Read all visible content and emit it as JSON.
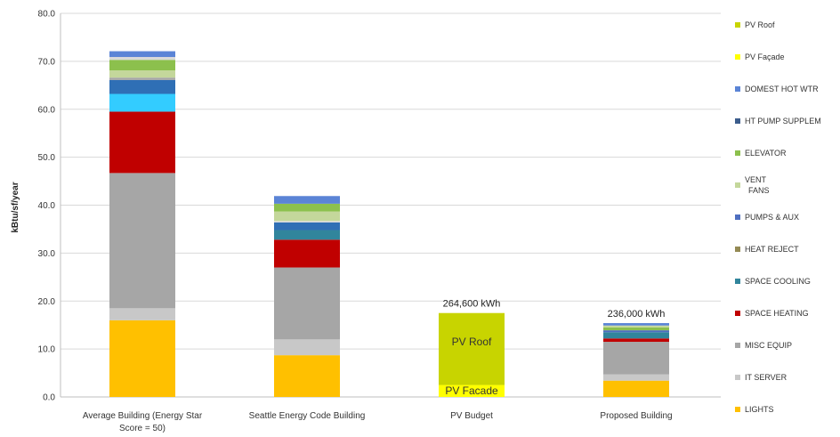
{
  "chart_data": {
    "type": "bar",
    "stacked": true,
    "ylabel": "kBtu/sf/year",
    "ylim": [
      0,
      80
    ],
    "yticks": [
      "0.0",
      "10.0",
      "20.0",
      "30.0",
      "40.0",
      "50.0",
      "60.0",
      "70.0",
      "80.0"
    ],
    "grid": true,
    "legend_position": "right",
    "categories": [
      [
        "Average Building (Energy Star",
        "Score = 50)"
      ],
      [
        "Seattle Energy Code Building"
      ],
      [
        "PV Budget"
      ],
      [
        "Proposed Building"
      ]
    ],
    "series": [
      {
        "name": "LIGHTS",
        "color": "#FFC000",
        "values": [
          16.0,
          8.7,
          0,
          3.4
        ]
      },
      {
        "name": "IT SERVER",
        "color": "#C8C8C8",
        "values": [
          2.5,
          3.3,
          0,
          1.3
        ]
      },
      {
        "name": "MISC EQUIP",
        "color": "#A6A6A6",
        "values": [
          28.2,
          15.0,
          0,
          6.8
        ]
      },
      {
        "name": "SPACE HEATING",
        "color": "#C00000",
        "values": [
          12.8,
          5.8,
          0,
          0.7
        ]
      },
      {
        "name": "SPACE COOLING",
        "color": "#31859C",
        "values": [
          0,
          0,
          0,
          0
        ]
      },
      {
        "name": "HEAT REJECT",
        "color": "#948A54",
        "values": [
          0,
          0,
          0,
          0
        ]
      },
      {
        "name": "PUMPS & AUX",
        "color": "#4F6FC0",
        "values": [
          0,
          0,
          0,
          0
        ]
      },
      {
        "name": "VENT\nFANS",
        "color": "#C4D79B",
        "values": [
          0,
          0,
          0,
          0
        ]
      },
      {
        "name": "ELEVATOR",
        "color": "#8CC04D",
        "values": [
          0,
          0,
          0,
          0
        ]
      },
      {
        "name": "HT PUMP SUPPLEM",
        "color": "#3C5D8C",
        "values": [
          0,
          0,
          0,
          0
        ]
      },
      {
        "name": "DOMEST HOT WTR",
        "color": "#5B84D6",
        "values": [
          0,
          0,
          0,
          0
        ]
      },
      {
        "name": "PV Façade",
        "color": "#FFFF00",
        "values": [
          0,
          0,
          2.5,
          0
        ]
      },
      {
        "name": "PV Roof",
        "color": "#C8D400",
        "values": [
          0,
          0,
          15.0,
          0
        ]
      }
    ],
    "extra_segments": [
      {
        "bar": 0,
        "values": [
          {
            "color": "#33CCFF",
            "value": 3.7
          },
          {
            "color": "#2F6FB5",
            "value": 2.9
          },
          {
            "color": "#A6A6A6",
            "value": 0.5
          },
          {
            "color": "#C4D79B",
            "value": 1.5
          },
          {
            "color": "#8CC04D",
            "value": 2.2
          },
          {
            "color": "#D9D9D9",
            "value": 0.6
          },
          {
            "color": "#5B84D6",
            "value": 1.2
          }
        ]
      },
      {
        "bar": 1,
        "values": [
          {
            "color": "#31859C",
            "value": 2.0
          },
          {
            "color": "#2F6FB5",
            "value": 1.6
          },
          {
            "color": "#D9D9D9",
            "value": 0.3
          },
          {
            "color": "#C4D79B",
            "value": 2.0
          },
          {
            "color": "#8CC04D",
            "value": 1.6
          },
          {
            "color": "#5B84D6",
            "value": 1.6
          }
        ]
      },
      {
        "bar": 3,
        "values": [
          {
            "color": "#31859C",
            "value": 1.3
          },
          {
            "color": "#4F6FC0",
            "value": 0.4
          },
          {
            "color": "#8CC04D",
            "value": 0.6
          },
          {
            "color": "#C4D79B",
            "value": 0.4
          },
          {
            "color": "#5B84D6",
            "value": 0.5
          }
        ]
      }
    ],
    "annotations": [
      {
        "bar": 2,
        "text": "264,600  kWh"
      },
      {
        "bar": 3,
        "text": "236,000  kWh"
      }
    ],
    "in_bar_labels": [
      {
        "bar": 2,
        "value": 11.5,
        "text": "PV Roof"
      },
      {
        "bar": 2,
        "value": 1.3,
        "text": "PV Facade"
      }
    ],
    "legend": [
      {
        "label": "PV Roof",
        "color": "#C8D400"
      },
      {
        "label": "PV Façade",
        "color": "#FFFF00"
      },
      {
        "label": "DOMEST HOT WTR",
        "color": "#5B84D6"
      },
      {
        "label": "HT PUMP SUPPLEM",
        "color": "#3C5D8C"
      },
      {
        "label": "ELEVATOR",
        "color": "#8CC04D"
      },
      {
        "label": "VENT\nFANS",
        "color": "#C4D79B"
      },
      {
        "label": "PUMPS & AUX",
        "color": "#4F6FC0"
      },
      {
        "label": "HEAT REJECT",
        "color": "#948A54"
      },
      {
        "label": "SPACE COOLING",
        "color": "#31859C"
      },
      {
        "label": "SPACE HEATING",
        "color": "#C00000"
      },
      {
        "label": "MISC EQUIP",
        "color": "#A6A6A6"
      },
      {
        "label": "IT SERVER",
        "color": "#C8C8C8"
      },
      {
        "label": "LIGHTS",
        "color": "#FFC000"
      }
    ]
  }
}
